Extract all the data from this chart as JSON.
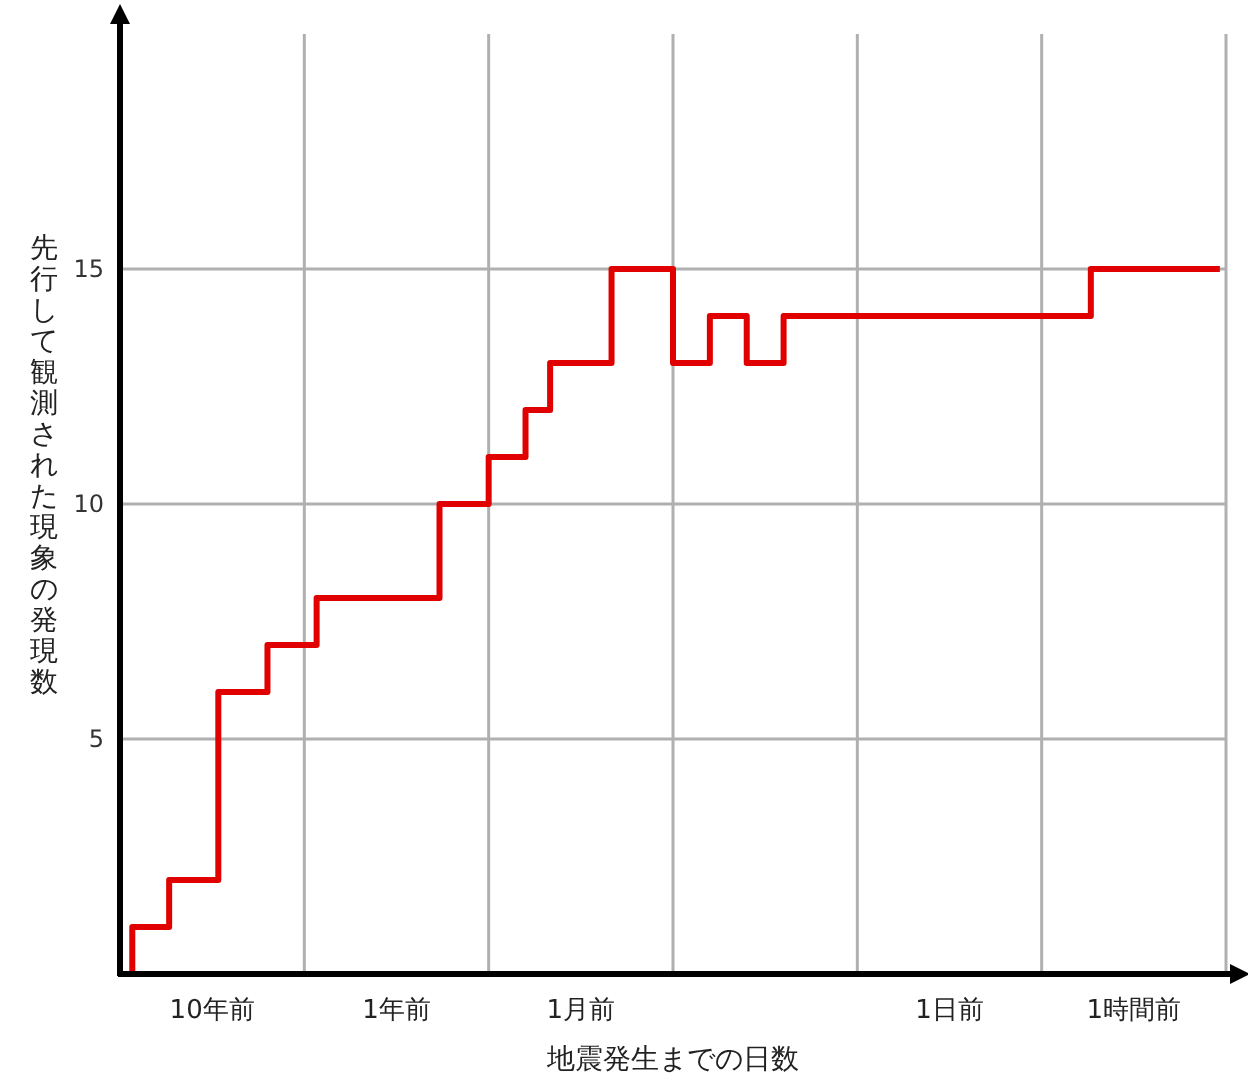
{
  "chart_data": {
    "type": "step",
    "xlabel": "地震発生までの日数",
    "ylabel": "先行して観測された現象の発現数",
    "categories": [
      null,
      null,
      null,
      null,
      null,
      null,
      null,
      "10年前",
      null,
      null,
      null,
      null,
      null,
      null,
      null,
      null,
      null,
      null,
      null,
      null,
      null,
      null,
      "1年前",
      null,
      null,
      null,
      null,
      null,
      null,
      null,
      null,
      null,
      null,
      null,
      null,
      null,
      null,
      "1月前",
      null,
      null,
      null,
      null,
      null,
      null,
      null,
      null,
      null,
      null,
      null,
      null,
      null,
      null,
      null,
      null,
      null,
      null,
      null,
      null,
      null,
      null,
      null,
      null,
      null,
      null,
      null,
      null,
      null,
      "1日前",
      null,
      null,
      null,
      null,
      null,
      null,
      null,
      null,
      null,
      null,
      null,
      null,
      null,
      null,
      "1時間前",
      null,
      null,
      null,
      null,
      null,
      null,
      null
    ],
    "series": [
      {
        "color": "#e00000",
        "values": [
          0,
          1,
          1,
          1,
          2,
          2,
          2,
          2,
          6,
          6,
          6,
          6,
          7,
          7,
          7,
          7,
          8,
          8,
          8,
          8,
          8,
          8,
          8,
          8,
          8,
          8,
          10,
          10,
          10,
          10,
          11,
          11,
          11,
          12,
          12,
          13,
          13,
          13,
          13,
          13,
          15,
          15,
          15,
          15,
          15,
          13,
          13,
          13,
          14,
          14,
          14,
          13,
          13,
          13,
          14,
          14,
          14,
          14,
          14,
          14,
          14,
          14,
          14,
          14,
          14,
          14,
          14,
          14,
          14,
          14,
          14,
          14,
          14,
          14,
          14,
          14,
          14,
          14,
          14,
          15,
          15,
          15,
          15,
          15,
          15,
          15,
          15,
          15,
          15,
          15
        ]
      }
    ],
    "ylim": [
      0,
      20
    ],
    "yticks": [
      5,
      10,
      15
    ],
    "grid": true
  }
}
